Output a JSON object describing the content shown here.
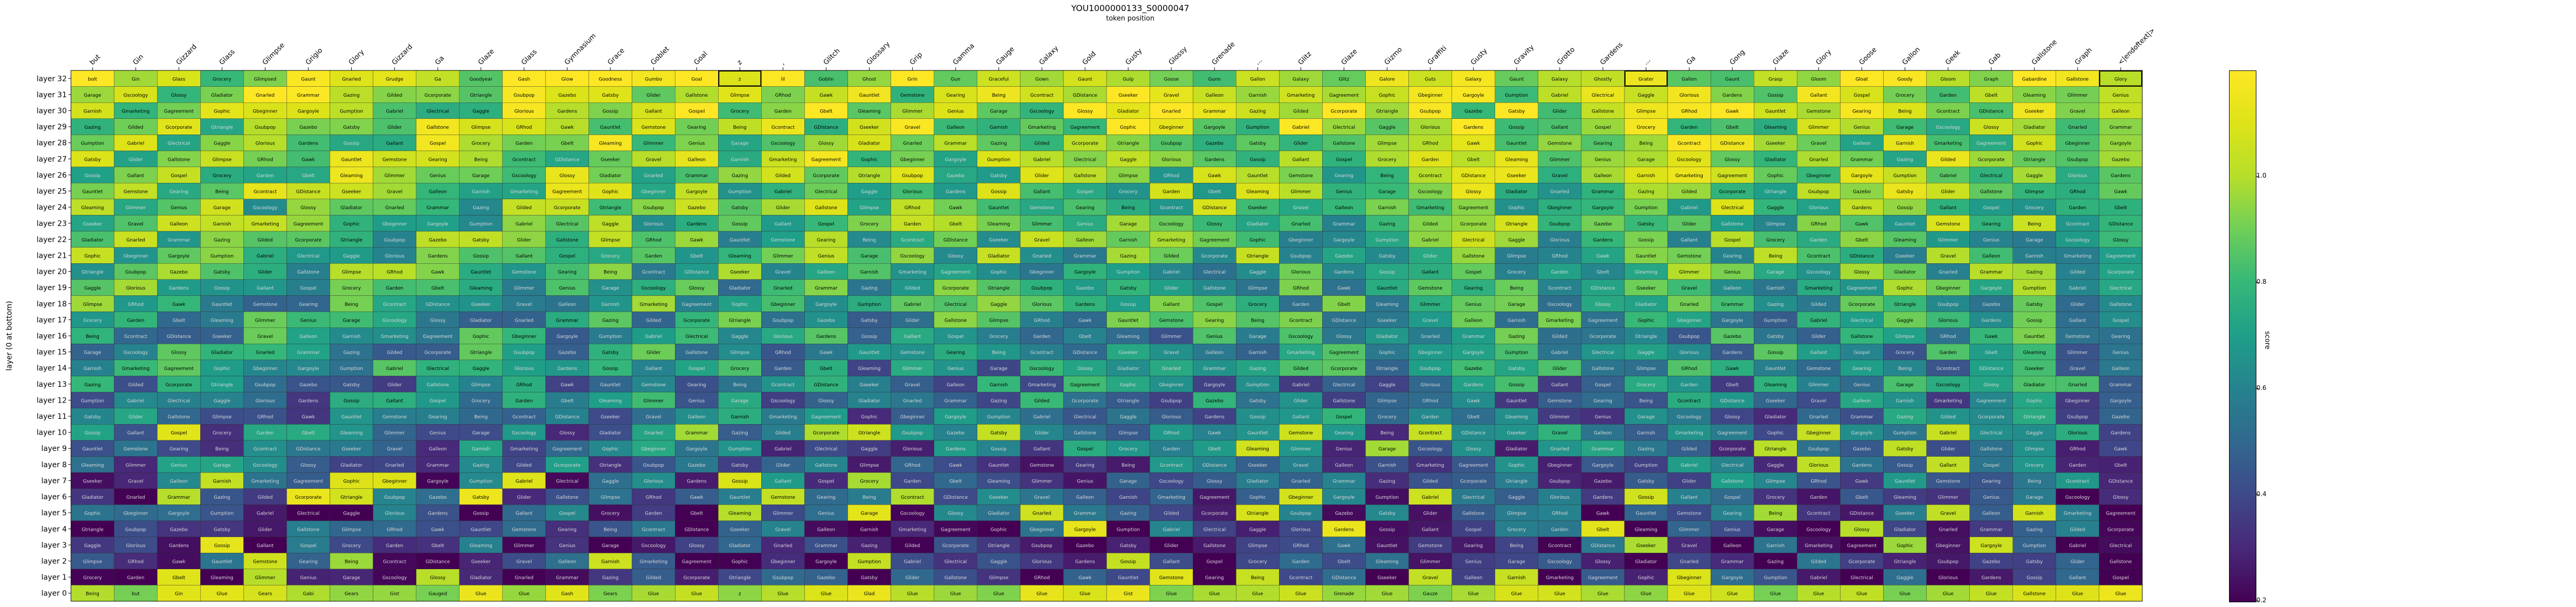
{
  "chart_data": {
    "type": "heatmap",
    "title": "YOU1000000133_S0000047",
    "xlabel": "token position",
    "ylabel": "layer (0 at bottom)",
    "colorbar_label": "score",
    "colorbar_range": [
      0.0,
      1.0
    ],
    "colorbar_ticks": [
      "0.2",
      "0.4",
      "0.6",
      "0.8",
      "1.0"
    ],
    "colormap": "viridis",
    "columns": [
      "but",
      "Gin",
      "Gizzard",
      "Glass",
      "Glimpse",
      "Grigio",
      "Glory",
      "Gizzard",
      "Ga",
      "Glaze",
      "Glass",
      "Gymnasium",
      "Grace",
      "Goblet",
      "Goal",
      "z",
      ",",
      "Glitch",
      "Glossary",
      "Grip",
      "Gamma",
      "Gauge",
      "Galaxy",
      "Gold",
      "Gusty",
      "Glossy",
      "Grenade",
      "...",
      "Glitz",
      "Glaze",
      "Gizmo",
      "Graffiti",
      "Gusty",
      "Gravity",
      "Grotto",
      "Gardens",
      "...",
      "Ga",
      "Gong",
      "Glaze",
      "Glory",
      "Goose",
      "Gallon",
      "Geek",
      "Gab",
      "Gallstone",
      "Graph",
      "<|endoftext|>"
    ],
    "layers": [
      "layer 32",
      "layer 31",
      "layer 30",
      "layer 29",
      "layer 28",
      "layer 27",
      "layer 26",
      "layer 25",
      "layer 24",
      "layer 23",
      "layer 22",
      "layer 21",
      "layer 20",
      "layer 19",
      "layer 18",
      "layer 17",
      "layer 16",
      "layer 15",
      "layer 14",
      "layer 13",
      "layer 12",
      "layer 11",
      "layer 10",
      "layer 9",
      "layer 8",
      "layer 7",
      "layer 6",
      "layer 5",
      "layer 4",
      "layer 3",
      "layer 2",
      "layer 1",
      "layer 0"
    ],
    "top_row_words": [
      "bolt",
      "Gin",
      "Glass",
      "Grocery",
      "Glimpsed",
      "Gaunt",
      "Gnarled",
      "Grudge",
      "Ga",
      "Goodyear",
      "Gash",
      "Glow",
      "Goodness",
      "Gumbo",
      "Goal",
      "z",
      "lil",
      "Goblin",
      "Ghost",
      "Grin",
      "Gun",
      "Graceful",
      "Gown",
      "Gaunt",
      "Gulp",
      "Goose",
      "Gunn",
      "Gallon",
      "Galaxy",
      "Glitz",
      "Galore",
      "Guts",
      "Galaxy",
      "Gaunt",
      "Galaxy",
      "Ghostly",
      "Grater",
      "Gallon",
      "Gaunt",
      "Grasp",
      "Gloom",
      "Gloat",
      "Goody",
      "Gloom",
      "Graph",
      "Gabardine",
      "Gallstone",
      "Glory"
    ],
    "bottom_row_words": [
      "Being",
      "but",
      "Gin",
      "Glue",
      "Gears",
      "Gabi",
      "Gears",
      "Gist",
      "Gauged",
      "Glue",
      "Glue",
      "Gash",
      "Gears",
      "Glue",
      "Glue",
      "z",
      "Glue",
      "Glue",
      "Glad",
      "Glue",
      "Glue",
      "Glue",
      "Glue",
      "Glue",
      "Gist",
      "Glue",
      "Glue",
      "Glue",
      "Glue",
      "Grenade",
      "Glue",
      "Gauze",
      "Glue",
      "Glue",
      "Glue",
      "Glue",
      "Glue",
      "Glue",
      "Glue",
      "Glue",
      "Glue",
      "Glue",
      "Glue",
      "Glue",
      "Glue",
      "Gallstone",
      "Glue",
      "Glue"
    ],
    "mid_words": [
      "Being",
      "Gmarketing",
      "Glectrical",
      "Grocery",
      "Gscoology",
      "Gcorporate",
      "Glimpse",
      "Gcontract",
      "Gagreement",
      "Gaggle",
      "Garden",
      "Glossy",
      "Gtriangle",
      "GRhod",
      "GDistance",
      "Gophic",
      "Glorious",
      "Gbelt",
      "Gladiator",
      "Gsubpop",
      "Gawk",
      "Gseeker",
      "Gbeginner",
      "Gardens",
      "Gleaming",
      "Gnarled",
      "Gazebo",
      "Gauntlet",
      "Gravel",
      "Gargoyle",
      "Gossip",
      "Glimmer",
      "Grammar",
      "Gatsby",
      "Gemstone",
      "Galleon",
      "Gumption",
      "Gallant",
      "Genius",
      "Gazing",
      "Glider",
      "Gearing",
      "Garnish",
      "Gabriel",
      "Gospel",
      "Garage",
      "Gilded",
      "Gallstone"
    ]
  }
}
